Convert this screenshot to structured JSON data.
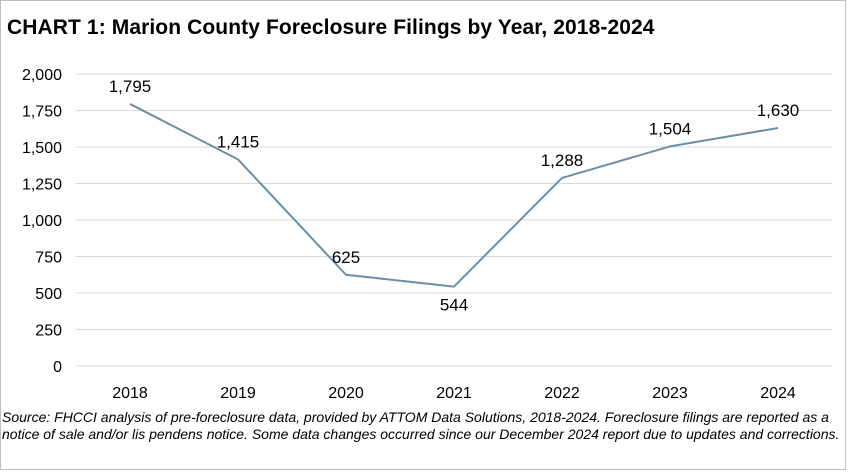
{
  "title": "CHART 1: Marion County Foreclosure Filings by Year, 2018-2024",
  "source_note": "Source: FHCCI analysis of pre-foreclosure data, provided by ATTOM Data Solutions, 2018-2024. Foreclosure filings are reported as a notice of sale and/or lis pendens notice. Some data changes occurred since our December 2024 report due to updates and corrections.",
  "chart_data": {
    "type": "line",
    "title": "CHART 1: Marion County Foreclosure Filings by Year, 2018-2024",
    "xlabel": "",
    "ylabel": "",
    "categories": [
      "2018",
      "2019",
      "2020",
      "2021",
      "2022",
      "2023",
      "2024"
    ],
    "series": [
      {
        "values": [
          1795,
          1415,
          625,
          544,
          1288,
          1504,
          1630
        ],
        "data_labels": [
          "1,795",
          "1,415",
          "625",
          "544",
          "1,288",
          "1,504",
          "1,630"
        ],
        "color": "#6a8fa8"
      }
    ],
    "ylim": [
      0,
      2000
    ],
    "yticks": [
      0,
      250,
      500,
      750,
      1000,
      1250,
      1500,
      1750,
      2000
    ],
    "ytick_labels": [
      "0",
      "250",
      "500",
      "750",
      "1,000",
      "1,250",
      "1,500",
      "1,750",
      "2,000"
    ],
    "grid": true,
    "grid_color": "#d9d9d9",
    "legend": "none"
  }
}
